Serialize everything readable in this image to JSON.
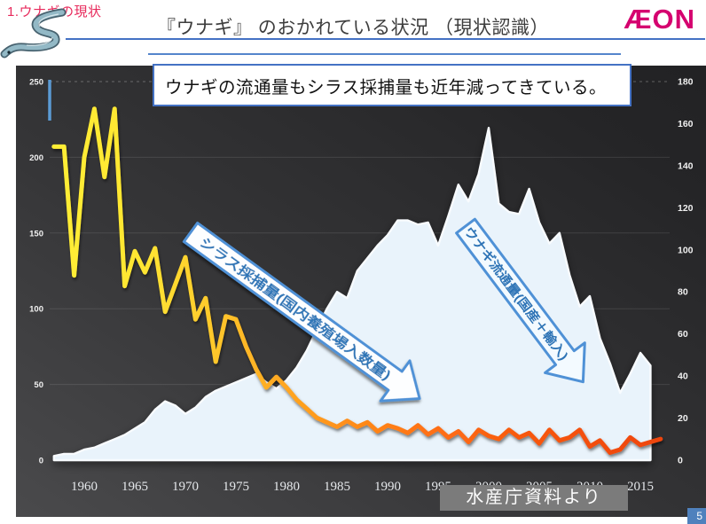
{
  "header": {
    "section_label": "1.ウナギの現状",
    "title": "『ウナギ』 のおかれている状況 （現状認識）",
    "logo_text": "ÆON"
  },
  "callout": {
    "text": "ウナギの流通量もシラス採捕量も近年減ってきている。"
  },
  "source_note": "水産庁資料より",
  "footer": {
    "page_number": "5"
  },
  "colors": {
    "accent_blue": "#4472c4",
    "arrow_border_blue": "#4f91d6",
    "arrow_text_blue": "#2e74b6",
    "aeon_magenta": "#d5006f",
    "section_red": "#e7295b",
    "panel_dark": "#2c2c2e",
    "area_fill": "#e9f3fb",
    "source_box_gray": "#7b7b7b",
    "page_badge_blue": "#4f81bd",
    "line_gradient": [
      "#ffee35",
      "#ffab22",
      "#ee450e"
    ]
  },
  "chart_data": {
    "type": "area+line",
    "title": "",
    "x_start": 1957,
    "x_ticks": [
      1960,
      1965,
      1970,
      1975,
      1980,
      1985,
      1990,
      1995,
      2000,
      2005,
      2010,
      2015
    ],
    "left_axis": {
      "ticks": [
        0,
        50,
        100,
        150,
        200,
        250
      ],
      "max": 250
    },
    "right_axis": {
      "ticks": [
        0,
        20,
        40,
        60,
        80,
        100,
        120,
        140,
        160,
        180
      ],
      "max": 180
    },
    "grid": "horizontal-only",
    "legend_position": "in-plot-arrows",
    "series": [
      {
        "name": "ウナギ流通量(国産＋輸入)",
        "type": "area",
        "axis": "right",
        "color": "#e9f3fb",
        "x_end": 2016,
        "values": [
          2,
          3,
          3,
          5,
          6,
          8,
          10,
          12,
          15,
          18,
          24,
          28,
          26,
          22,
          25,
          30,
          33,
          35,
          37,
          39,
          41,
          37,
          34,
          38,
          44,
          52,
          62,
          72,
          80,
          77,
          90,
          96,
          102,
          107,
          114,
          114,
          112,
          113,
          102,
          116,
          131,
          123,
          136,
          158,
          122,
          118,
          117,
          129,
          113,
          103,
          108,
          88,
          73,
          78,
          58,
          46,
          32,
          41,
          51,
          45
        ]
      },
      {
        "name": "シラス採捕量(国内養殖場入数量)",
        "type": "line",
        "axis": "left",
        "color": "gradient-yellow-to-red",
        "x_end": 2017,
        "values": [
          207,
          207,
          122,
          200,
          232,
          187,
          232,
          115,
          138,
          124,
          140,
          98,
          116,
          134,
          93,
          107,
          65,
          95,
          93,
          75,
          60,
          48,
          55,
          48,
          40,
          34,
          28,
          25,
          22,
          26,
          22,
          25,
          19,
          23,
          21,
          18,
          23,
          17,
          21,
          15,
          19,
          12,
          20,
          16,
          14,
          20,
          15,
          18,
          11,
          20,
          13,
          15,
          20,
          9,
          13,
          5,
          7,
          15,
          10,
          12,
          14
        ]
      }
    ]
  }
}
